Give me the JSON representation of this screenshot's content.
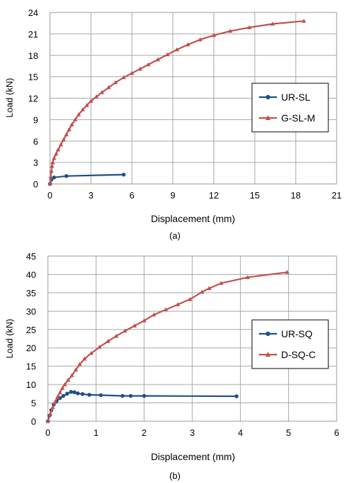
{
  "chart_data": [
    {
      "type": "line",
      "caption": "(a)",
      "xlabel": "Displacement (mm)",
      "ylabel": "Load (kN)",
      "xlim": [
        0,
        21
      ],
      "ylim": [
        0,
        24
      ],
      "xticks": [
        0,
        3,
        6,
        9,
        12,
        15,
        18,
        21
      ],
      "yticks": [
        0,
        3,
        6,
        9,
        12,
        15,
        18,
        21,
        24
      ],
      "grid": true,
      "legend_position": "right-middle",
      "series": [
        {
          "name": "UR-SL",
          "color": "#1f4e8c",
          "marker": "circle",
          "points": [
            [
              0,
              0
            ],
            [
              0.1,
              0.6
            ],
            [
              0.3,
              0.9
            ],
            [
              1.2,
              1.1
            ],
            [
              5.4,
              1.3
            ]
          ]
        },
        {
          "name": "G-SL-M",
          "color": "#c0504d",
          "marker": "triangle",
          "points": [
            [
              0,
              0
            ],
            [
              0.05,
              1.0
            ],
            [
              0.1,
              1.8
            ],
            [
              0.15,
              2.5
            ],
            [
              0.2,
              3.0
            ],
            [
              0.3,
              3.6
            ],
            [
              0.45,
              4.2
            ],
            [
              0.6,
              4.8
            ],
            [
              0.8,
              5.5
            ],
            [
              1.0,
              6.2
            ],
            [
              1.2,
              6.9
            ],
            [
              1.4,
              7.6
            ],
            [
              1.6,
              8.3
            ],
            [
              1.85,
              9.0
            ],
            [
              2.1,
              9.7
            ],
            [
              2.4,
              10.4
            ],
            [
              2.7,
              11.0
            ],
            [
              3.0,
              11.6
            ],
            [
              3.4,
              12.2
            ],
            [
              3.8,
              12.8
            ],
            [
              4.3,
              13.5
            ],
            [
              4.8,
              14.2
            ],
            [
              5.4,
              14.9
            ],
            [
              6.0,
              15.5
            ],
            [
              6.6,
              16.1
            ],
            [
              7.2,
              16.7
            ],
            [
              7.9,
              17.4
            ],
            [
              8.6,
              18.1
            ],
            [
              9.3,
              18.8
            ],
            [
              10.1,
              19.5
            ],
            [
              11.0,
              20.2
            ],
            [
              12.0,
              20.8
            ],
            [
              13.2,
              21.4
            ],
            [
              14.6,
              21.9
            ],
            [
              16.3,
              22.4
            ],
            [
              18.6,
              22.8
            ]
          ]
        }
      ]
    },
    {
      "type": "line",
      "caption": "(b)",
      "xlabel": "Displacement (mm)",
      "ylabel": "Load (kN)",
      "xlim": [
        0,
        6
      ],
      "ylim": [
        0,
        45
      ],
      "xticks": [
        0,
        1,
        2,
        3,
        4,
        5,
        6
      ],
      "yticks": [
        0,
        5,
        10,
        15,
        20,
        25,
        30,
        35,
        40,
        45
      ],
      "grid": true,
      "legend_position": "right-middle",
      "series": [
        {
          "name": "UR-SQ",
          "color": "#1f4e8c",
          "marker": "circle",
          "points": [
            [
              0,
              0
            ],
            [
              0.03,
              1.5
            ],
            [
              0.07,
              3.0
            ],
            [
              0.12,
              4.5
            ],
            [
              0.18,
              5.5
            ],
            [
              0.25,
              6.3
            ],
            [
              0.32,
              6.9
            ],
            [
              0.4,
              7.5
            ],
            [
              0.48,
              8.0
            ],
            [
              0.55,
              7.9
            ],
            [
              0.62,
              7.6
            ],
            [
              0.72,
              7.4
            ],
            [
              0.86,
              7.2
            ],
            [
              1.1,
              7.1
            ],
            [
              1.55,
              6.9
            ],
            [
              1.72,
              6.9
            ],
            [
              2.0,
              6.9
            ],
            [
              3.92,
              6.8
            ]
          ]
        },
        {
          "name": "D-SQ-C",
          "color": "#c0504d",
          "marker": "triangle",
          "points": [
            [
              0,
              0
            ],
            [
              0.05,
              2.0
            ],
            [
              0.1,
              3.8
            ],
            [
              0.15,
              5.2
            ],
            [
              0.2,
              6.6
            ],
            [
              0.25,
              7.8
            ],
            [
              0.3,
              9.0
            ],
            [
              0.35,
              10.0
            ],
            [
              0.42,
              11.2
            ],
            [
              0.5,
              12.5
            ],
            [
              0.58,
              14.0
            ],
            [
              0.66,
              15.5
            ],
            [
              0.76,
              17.0
            ],
            [
              0.9,
              18.5
            ],
            [
              1.07,
              20.2
            ],
            [
              1.25,
              21.8
            ],
            [
              1.42,
              23.2
            ],
            [
              1.6,
              24.6
            ],
            [
              1.8,
              26.0
            ],
            [
              2.0,
              27.4
            ],
            [
              2.2,
              29.0
            ],
            [
              2.45,
              30.4
            ],
            [
              2.7,
              31.8
            ],
            [
              2.95,
              33.2
            ],
            [
              3.2,
              35.2
            ],
            [
              3.35,
              36.2
            ],
            [
              3.6,
              37.6
            ],
            [
              4.15,
              39.2
            ],
            [
              4.97,
              40.6
            ]
          ]
        }
      ]
    }
  ]
}
